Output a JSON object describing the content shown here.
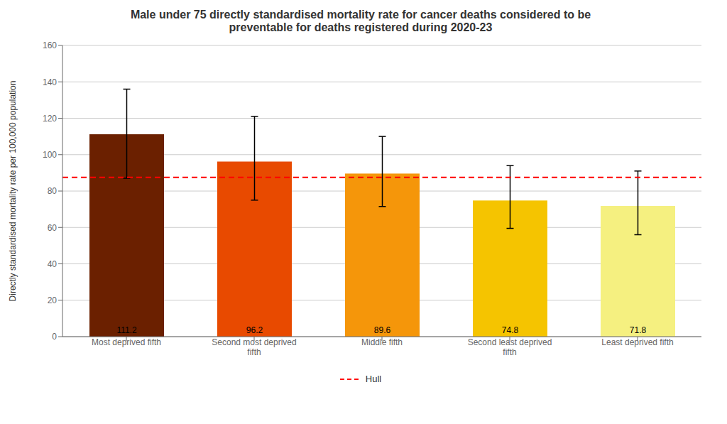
{
  "chart_data": {
    "type": "bar",
    "title": "Male under 75 directly standardised mortality rate for cancer deaths considered to be\npreventable for deaths registered during 2020-23",
    "ylabel": "Directly standardised mortality rate per 100,000 population",
    "categories": [
      "Most deprived fifth",
      "Second most deprived\nfifth",
      "Middle fifth",
      "Second least deprived\nfifth",
      "Least deprived fifth"
    ],
    "values": [
      111.2,
      96.2,
      89.6,
      74.8,
      71.8
    ],
    "colors": [
      "#6B2000",
      "#E84A00",
      "#F5960A",
      "#F5C400",
      "#F5F080"
    ],
    "error_upper": [
      136.0,
      121.0,
      110.0,
      94.0,
      91.0
    ],
    "error_lower": [
      87.0,
      75.0,
      71.5,
      59.5,
      56.0
    ],
    "reference_line": {
      "value": 87.5,
      "label": "Hull",
      "color": "#FF0000",
      "line_style": "dashed"
    },
    "ylim": [
      0,
      160
    ],
    "yticks": [
      0,
      20,
      40,
      60,
      80,
      100,
      120,
      140,
      160
    ],
    "grid": true,
    "legend": "bottom",
    "data_labels": true
  }
}
